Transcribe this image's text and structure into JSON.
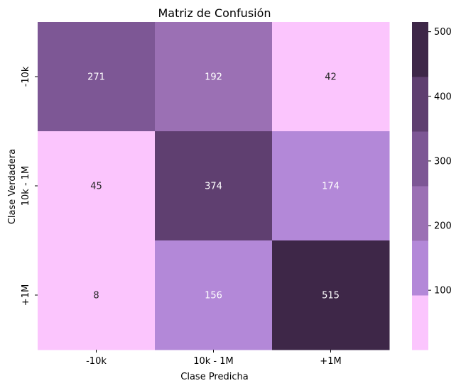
{
  "chart_data": {
    "type": "heatmap",
    "title": "Matriz de Confusión",
    "xlabel": "Clase Predicha",
    "ylabel": "Clase Verdadera",
    "x_categories": [
      "-10k",
      "10k - 1M",
      "+1M"
    ],
    "y_categories": [
      "-10k",
      "10k - 1M",
      "+1M"
    ],
    "values": [
      [
        271,
        192,
        42
      ],
      [
        45,
        374,
        174
      ],
      [
        8,
        156,
        515
      ]
    ],
    "cell_colors": [
      [
        "#7d5795",
        "#9b70b4",
        "#fbc5fd"
      ],
      [
        "#fbc5fd",
        "#5f3f70",
        "#b388d8"
      ],
      [
        "#fbc5fd",
        "#b388d8",
        "#3e2748"
      ]
    ],
    "cell_text_colors": [
      [
        "#ffffff",
        "#ffffff",
        "#262626"
      ],
      [
        "#262626",
        "#ffffff",
        "#ffffff"
      ],
      [
        "#262626",
        "#ffffff",
        "#ffffff"
      ]
    ],
    "colorbar": {
      "range": [
        8,
        515
      ],
      "ticks": [
        100,
        200,
        300,
        400,
        500
      ],
      "bands": [
        "#fbc5fd",
        "#b388d8",
        "#9b70b4",
        "#7d5795",
        "#5f3f70",
        "#3e2748"
      ]
    }
  }
}
